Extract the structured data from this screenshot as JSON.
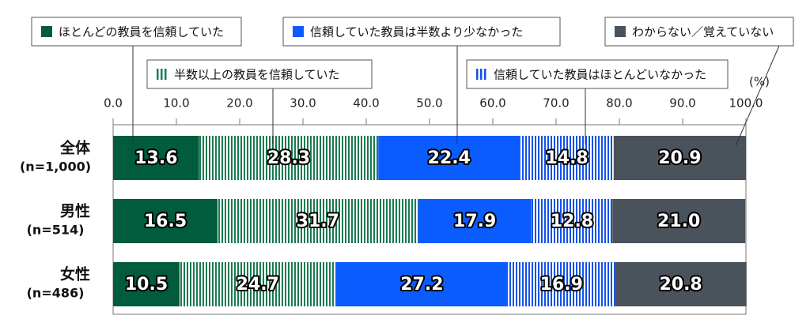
{
  "chart_data": {
    "type": "stacked_bar_horizontal",
    "categories": [
      "全体",
      "男性",
      "女性"
    ],
    "category_notes": [
      "(n=1,000)",
      "(n=514)",
      "(n=486)"
    ],
    "unit_label": "(%)",
    "xlim": [
      0,
      100
    ],
    "xticks": [
      {
        "value": 0,
        "label": "0.0"
      },
      {
        "value": 10,
        "label": "10.0"
      },
      {
        "value": 20,
        "label": "20.0"
      },
      {
        "value": 30,
        "label": "30.0"
      },
      {
        "value": 40,
        "label": "40.0"
      },
      {
        "value": 50,
        "label": "50.0"
      },
      {
        "value": 60,
        "label": "60.0"
      },
      {
        "value": 70,
        "label": "70.0"
      },
      {
        "value": 80,
        "label": "80.0"
      },
      {
        "value": 90,
        "label": "90.0"
      },
      {
        "value": 100,
        "label": "100.0"
      }
    ],
    "series": [
      {
        "name": "ほとんどの教員を信頼していた",
        "color": "#005c3c",
        "pattern": "solid",
        "values": [
          13.6,
          16.5,
          10.5
        ],
        "value_labels": [
          "13.6",
          "16.5",
          "10.5"
        ]
      },
      {
        "name": "半数以上の教員を信頼していた",
        "color": "#1a7a50",
        "pattern": "stripes",
        "values": [
          28.3,
          31.7,
          24.7
        ],
        "value_labels": [
          "28.3",
          "31.7",
          "24.7"
        ]
      },
      {
        "name": "信頼していた教員は半数より少なかった",
        "color": "#0a5cff",
        "pattern": "solid",
        "values": [
          22.4,
          17.9,
          27.2
        ],
        "value_labels": [
          "22.4",
          "17.9",
          "27.2"
        ]
      },
      {
        "name": "信頼していた教員はほとんどいなかった",
        "color": "#1452e6",
        "pattern": "stripes",
        "values": [
          14.8,
          12.8,
          16.9
        ],
        "value_labels": [
          "14.8",
          "12.8",
          "16.9"
        ]
      },
      {
        "name": "わからない／覚えていない",
        "color": "#4a525b",
        "pattern": "solid",
        "values": [
          20.9,
          21.0,
          20.8
        ],
        "value_labels": [
          "20.9",
          "21.0",
          "20.8"
        ]
      }
    ]
  }
}
